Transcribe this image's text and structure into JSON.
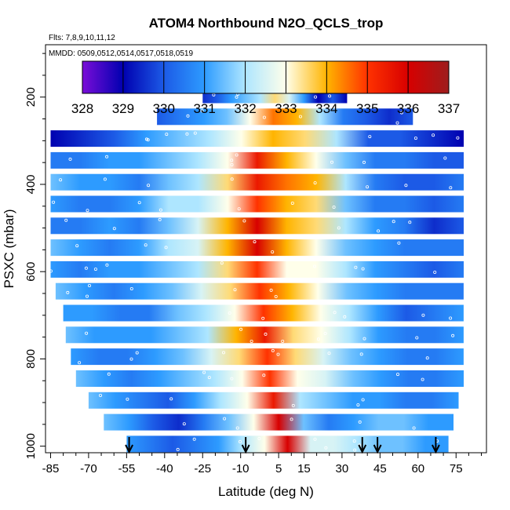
{
  "chart_data": {
    "type": "heatmap",
    "title": "ATOM4 Northbound N2O_QCLS_trop",
    "flights_label": "Flts: 7,8,9,10,11,12",
    "dates_label": "MMDD: 0509,0512,0514,0517,0518,0519",
    "xlabel": "Latitude (deg N)",
    "ylabel": "PSXC (mbar)",
    "xlim": [
      -87,
      87
    ],
    "ylim": [
      1015,
      80
    ],
    "x_ticks": [
      -85,
      -70,
      -55,
      -40,
      -25,
      -10,
      5,
      15,
      30,
      45,
      60,
      75
    ],
    "y_ticks": [
      200,
      400,
      600,
      800,
      1000
    ],
    "colorbar": {
      "ticks": [
        328,
        329,
        330,
        331,
        332,
        333,
        334,
        335,
        336,
        337
      ],
      "min": 328,
      "max": 337,
      "colors": [
        "#7a0dd8",
        "#0000b0",
        "#1c5ae6",
        "#2d9bff",
        "#aee6ff",
        "#ffffea",
        "#ffb400",
        "#ff3200",
        "#d70000",
        "#9e1d1d"
      ]
    },
    "transect_arrows_lat": [
      -54,
      -8,
      38,
      44,
      67
    ],
    "pressure_levels": [
      195,
      245,
      295,
      345,
      395,
      445,
      495,
      545,
      595,
      645,
      695,
      745,
      795,
      845,
      895,
      945,
      995
    ],
    "level_lat_ranges": [
      [
        -25,
        32
      ],
      [
        -43,
        58
      ],
      [
        -85,
        78
      ],
      [
        -85,
        78
      ],
      [
        -85,
        78
      ],
      [
        -85,
        78
      ],
      [
        -85,
        78
      ],
      [
        -85,
        78
      ],
      [
        -85,
        78
      ],
      [
        -83,
        78
      ],
      [
        -80,
        78
      ],
      [
        -79,
        78
      ],
      [
        -77,
        78
      ],
      [
        -75,
        78
      ],
      [
        -70,
        76
      ],
      [
        -64,
        74
      ],
      [
        -55,
        72
      ]
    ],
    "n2o_values": [
      [
        329.5,
        330,
        331,
        331.5,
        332,
        333.5,
        332.5,
        331,
        329,
        330,
        329
      ],
      [
        330,
        330.5,
        331,
        331.5,
        333,
        334.5,
        334,
        332,
        330.5,
        330,
        329.5,
        330
      ],
      [
        329,
        329.5,
        330,
        331,
        331.5,
        332,
        333,
        334,
        333.5,
        332,
        330,
        330,
        329.5,
        329
      ],
      [
        330.5,
        330.5,
        331,
        331,
        331.5,
        332,
        333,
        335.5,
        334,
        333,
        331.5,
        330.5,
        330.5,
        330,
        330
      ],
      [
        331.5,
        331,
        331,
        330.5,
        331.5,
        332,
        333.5,
        335.5,
        334.5,
        334,
        332,
        330.5,
        330,
        330,
        330.5
      ],
      [
        331,
        330.5,
        330.5,
        331,
        332,
        332,
        333,
        335,
        334,
        333.5,
        331.5,
        330.5,
        330.5,
        330,
        330.5
      ],
      [
        330.5,
        330.5,
        331,
        330.5,
        331.5,
        332.5,
        334,
        336,
        334,
        333.5,
        332,
        331,
        330.5,
        329.5,
        330
      ],
      [
        331.5,
        331,
        330.5,
        331,
        332,
        332.5,
        334,
        336,
        334,
        333,
        331.5,
        331,
        330.5,
        330.5,
        330.5
      ],
      [
        331,
        330.5,
        331,
        331,
        331.5,
        332,
        333.5,
        335,
        333,
        333,
        332,
        331,
        330.5,
        330,
        330.5
      ],
      [
        331.5,
        331,
        330.5,
        331,
        331.5,
        332.5,
        333.5,
        335,
        334,
        333,
        331.5,
        331,
        330.5,
        330.5,
        330.5
      ],
      [
        331,
        331,
        330.5,
        330.5,
        331.5,
        332,
        333,
        335,
        334,
        333,
        332,
        331,
        330,
        330.5,
        331
      ],
      [
        331.5,
        331,
        331,
        331,
        331.5,
        332,
        334,
        335.5,
        333.5,
        333,
        332,
        331,
        330.5,
        330.5,
        331
      ],
      [
        331,
        330.5,
        330.5,
        331,
        331.5,
        332.5,
        333.5,
        335,
        333.5,
        332.5,
        331.5,
        331,
        330.5,
        330.5,
        331
      ],
      [
        331.5,
        331,
        330.5,
        331,
        331.5,
        332,
        333,
        335,
        333,
        332.5,
        331.5,
        331,
        330.5,
        330.5,
        331
      ],
      [
        331.5,
        331,
        330.5,
        330,
        331,
        332,
        333,
        335.5,
        332,
        331.5,
        331,
        331,
        330.5,
        330.5,
        331
      ],
      [
        331.5,
        331,
        330,
        329.5,
        330.5,
        331.5,
        333,
        336,
        331.5,
        330.5,
        331,
        331.5,
        331.5,
        331,
        331
      ],
      [
        331,
        330.5,
        330,
        330.5,
        331,
        332,
        333,
        336,
        332.5,
        332.5,
        332,
        331.5,
        331.5,
        331,
        331
      ]
    ]
  }
}
